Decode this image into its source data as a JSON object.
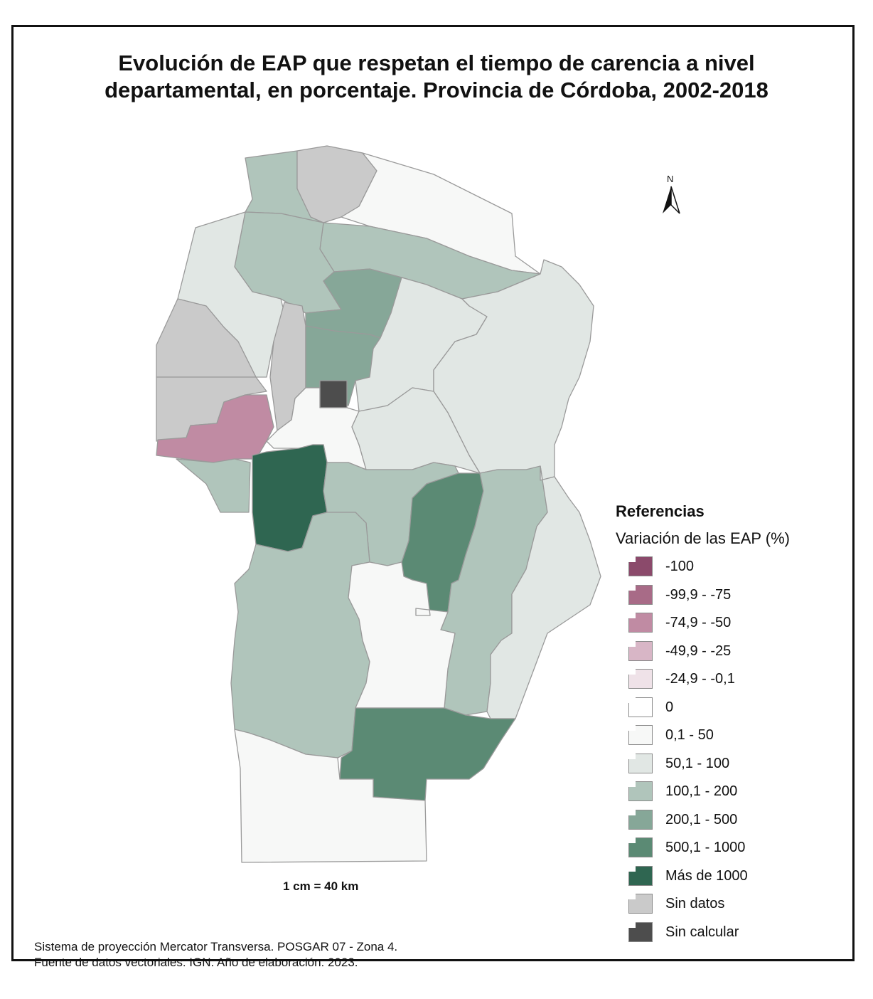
{
  "title": {
    "line1": "Evolución de EAP que respetan el tiempo de carencia a nivel",
    "line2": "departamental, en porcentaje. Provincia de Córdoba, 2002-2018"
  },
  "north_arrow": {
    "label": "N"
  },
  "legend": {
    "title": "Referencias",
    "subtitle": "Variación de las EAP (%)",
    "items": [
      {
        "label": "-100",
        "color": "#8b4a6b"
      },
      {
        "label": "-99,9 - -75",
        "color": "#a86b87"
      },
      {
        "label": "-74,9 - -50",
        "color": "#c08ba3"
      },
      {
        "label": "-49,9 - -25",
        "color": "#d8b6c6"
      },
      {
        "label": "-24,9 - -0,1",
        "color": "#efe2e8"
      },
      {
        "label": "0",
        "color": "#ffffff"
      },
      {
        "label": "0,1 - 50",
        "color": "#f7f8f7"
      },
      {
        "label": "50,1 - 100",
        "color": "#e1e7e4"
      },
      {
        "label": "100,1 - 200",
        "color": "#b0c5bb"
      },
      {
        "label": "200,1 - 500",
        "color": "#86a798"
      },
      {
        "label": "500,1 - 1000",
        "color": "#5b8a74"
      },
      {
        "label": "Más de 1000",
        "color": "#2f6651"
      },
      {
        "label": "Sin datos",
        "color": "#cacaca"
      },
      {
        "label": "Sin calcular",
        "color": "#4d4d4d"
      }
    ]
  },
  "scale": "1 cm = 40 km",
  "footer": {
    "line1": "Sistema de proyección Mercator Transversa. POSGAR 07 - Zona 4.",
    "line2": "Fuente de datos vectoriales: IGN. Año de elaboración: 2023."
  }
}
